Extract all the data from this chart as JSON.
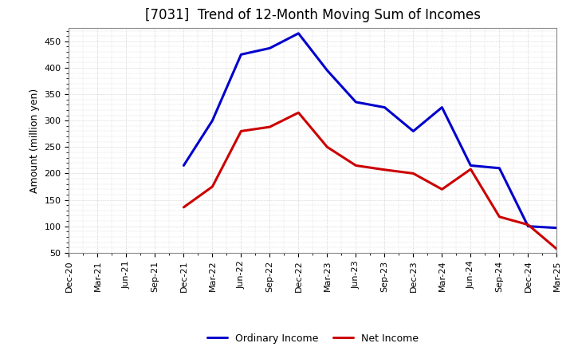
{
  "title": "[7031]  Trend of 12-Month Moving Sum of Incomes",
  "ylabel": "Amount (million yen)",
  "x_labels": [
    "Dec-20",
    "Mar-21",
    "Jun-21",
    "Sep-21",
    "Dec-21",
    "Mar-22",
    "Jun-22",
    "Sep-22",
    "Dec-22",
    "Mar-23",
    "Jun-23",
    "Sep-23",
    "Dec-23",
    "Mar-24",
    "Jun-24",
    "Sep-24",
    "Dec-24",
    "Mar-25"
  ],
  "ordinary_income": [
    null,
    null,
    null,
    null,
    215,
    300,
    425,
    437,
    465,
    395,
    335,
    325,
    280,
    325,
    215,
    210,
    100,
    97
  ],
  "net_income": [
    null,
    null,
    null,
    null,
    136,
    175,
    280,
    288,
    315,
    250,
    215,
    207,
    200,
    170,
    208,
    118,
    103,
    57
  ],
  "ordinary_color": "#0000CC",
  "net_color": "#CC0000",
  "ylim_min": 50,
  "ylim_max": 475,
  "yticks": [
    50,
    100,
    150,
    200,
    250,
    300,
    350,
    400,
    450
  ],
  "bg_color": "#FFFFFF",
  "plot_bg_color": "#FFFFFF",
  "grid_color": "#BBBBBB",
  "title_fontsize": 12,
  "axis_fontsize": 9,
  "tick_fontsize": 8,
  "legend_labels": [
    "Ordinary Income",
    "Net Income"
  ]
}
